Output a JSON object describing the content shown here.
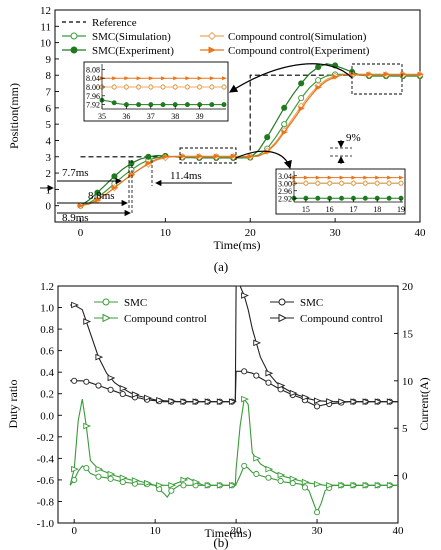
{
  "chart_data": [
    {
      "type": "line",
      "panel_label": "(a)",
      "xlabel": "Time(ms)",
      "ylabel": "Position(mm)",
      "xlim": [
        -3,
        40
      ],
      "ylim": [
        -1,
        12
      ],
      "xticks": [
        0,
        10,
        20,
        30,
        40
      ],
      "yticks": [
        0,
        1,
        2,
        3,
        4,
        5,
        6,
        7,
        8,
        9,
        10,
        11,
        12
      ],
      "legend_placement": "top-left",
      "series": [
        {
          "name": "Reference",
          "color": "#000000",
          "dash": true,
          "marker": "none",
          "x": [
            0,
            20,
            20,
            40
          ],
          "y": [
            3,
            3,
            8,
            8
          ]
        },
        {
          "name": "SMC(Simulation)",
          "color": "#3a9b3a",
          "marker": "open-circle",
          "x": [
            0,
            1,
            2,
            3,
            4,
            5,
            6,
            7,
            8,
            9,
            10,
            11,
            12,
            13,
            14,
            15,
            16,
            17,
            18,
            19,
            20,
            21,
            22,
            23,
            24,
            25,
            26,
            27,
            28,
            29,
            30,
            31,
            32,
            33,
            34,
            35,
            36,
            37,
            38,
            39,
            40
          ],
          "y": [
            0,
            0.15,
            0.5,
            0.9,
            1.35,
            1.8,
            2.2,
            2.55,
            2.8,
            2.95,
            3.0,
            3.0,
            3.0,
            3.0,
            2.98,
            3.0,
            3.0,
            3.0,
            3.0,
            3.0,
            3.0,
            3.1,
            3.5,
            4.2,
            5.0,
            5.8,
            6.6,
            7.25,
            7.7,
            7.95,
            8.05,
            8.05,
            8.02,
            8.0,
            8.0,
            8.0,
            8.0,
            8.0,
            8.0,
            8.0,
            8.0
          ]
        },
        {
          "name": "SMC(Experiment)",
          "color": "#1f7a1f",
          "marker": "filled-circle",
          "x": [
            0,
            1,
            2,
            3,
            4,
            5,
            6,
            7,
            8,
            9,
            10,
            11,
            12,
            13,
            14,
            15,
            16,
            17,
            18,
            19,
            20,
            21,
            22,
            23,
            24,
            25,
            26,
            27,
            28,
            29,
            30,
            31,
            32,
            33,
            34,
            35,
            36,
            37,
            38,
            39,
            40
          ],
          "y": [
            0,
            0.35,
            0.8,
            1.3,
            1.8,
            2.25,
            2.6,
            2.85,
            3.0,
            3.08,
            3.05,
            3.0,
            2.95,
            2.95,
            2.93,
            2.93,
            2.93,
            2.93,
            2.93,
            2.93,
            2.95,
            3.4,
            4.2,
            5.1,
            6.0,
            6.8,
            7.5,
            8.1,
            8.5,
            8.7,
            8.6,
            8.4,
            8.2,
            8.0,
            7.95,
            7.95,
            7.95,
            7.95,
            7.95,
            7.95,
            7.95
          ]
        },
        {
          "name": "Compound control(Simulation)",
          "color": "#f3a55c",
          "marker": "open-diamond",
          "x": [
            0,
            1,
            2,
            3,
            4,
            5,
            6,
            7,
            8,
            9,
            10,
            11,
            12,
            13,
            14,
            15,
            16,
            17,
            18,
            19,
            20,
            21,
            22,
            23,
            24,
            25,
            26,
            27,
            28,
            29,
            30,
            31,
            32,
            33,
            34,
            35,
            36,
            37,
            38,
            39,
            40
          ],
          "y": [
            0,
            0.1,
            0.35,
            0.7,
            1.1,
            1.5,
            1.9,
            2.25,
            2.55,
            2.8,
            2.95,
            3.0,
            3.0,
            3.0,
            3.0,
            3.0,
            3.0,
            3.0,
            3.0,
            3.0,
            3.0,
            3.05,
            3.35,
            3.9,
            4.6,
            5.35,
            6.1,
            6.8,
            7.35,
            7.75,
            7.95,
            8.03,
            8.03,
            8.02,
            8.02,
            8.02,
            8.02,
            8.02,
            8.02,
            8.02,
            8.02
          ]
        },
        {
          "name": "Compound control(Experiment)",
          "color": "#e8741c",
          "marker": "filled-triangle",
          "x": [
            0,
            1,
            2,
            3,
            4,
            5,
            6,
            7,
            8,
            9,
            10,
            11,
            12,
            13,
            14,
            15,
            16,
            17,
            18,
            19,
            20,
            21,
            22,
            23,
            24,
            25,
            26,
            27,
            28,
            29,
            30,
            31,
            32,
            33,
            34,
            35,
            36,
            37,
            38,
            39,
            40
          ],
          "y": [
            0,
            0.1,
            0.35,
            0.7,
            1.1,
            1.5,
            1.9,
            2.25,
            2.6,
            2.85,
            3.0,
            3.02,
            3.03,
            3.03,
            3.03,
            3.03,
            3.03,
            3.03,
            3.03,
            3.03,
            3.02,
            3.05,
            3.3,
            3.8,
            4.5,
            5.2,
            5.95,
            6.65,
            7.25,
            7.65,
            7.9,
            8.03,
            8.06,
            8.06,
            8.06,
            8.06,
            8.06,
            8.06,
            8.06,
            8.06,
            8.06
          ]
        }
      ],
      "annotations": [
        "7.7ms",
        "8.8ms",
        "8.9ms",
        "11.4ms",
        "9%"
      ],
      "insets": [
        {
          "xlim": [
            35,
            40
          ],
          "ylim": [
            7.9,
            8.1
          ],
          "xticks": [
            35,
            36,
            37,
            38,
            39
          ],
          "yticks": [
            7.92,
            7.96,
            8.0,
            8.04,
            8.08
          ],
          "ytick_labels": [
            "7.92",
            "7.96",
            "8.00",
            "8.04",
            "8.08"
          ],
          "series": [
            {
              "name": "SMC(Simulation)",
              "x": [
                35,
                36,
                37,
                38,
                39,
                40
              ],
              "y": [
                8.0,
                8.0,
                8.0,
                8.0,
                8.0,
                8.0
              ]
            },
            {
              "name": "SMC(Experiment)",
              "x": [
                35,
                35.3,
                35.6,
                36,
                37,
                38,
                39,
                40
              ],
              "y": [
                7.94,
                7.935,
                7.925,
                7.92,
                7.92,
                7.92,
                7.92,
                7.92
              ]
            },
            {
              "name": "Compound control(Simulation)",
              "x": [
                35,
                36,
                37,
                38,
                39,
                40
              ],
              "y": [
                8.0,
                8.0,
                8.0,
                8.0,
                8.0,
                8.0
              ]
            },
            {
              "name": "Compound control(Experiment)",
              "x": [
                35,
                36,
                37,
                38,
                39,
                40
              ],
              "y": [
                8.04,
                8.04,
                8.04,
                8.04,
                8.04,
                8.04
              ]
            }
          ]
        },
        {
          "xlim": [
            14.5,
            19
          ],
          "ylim": [
            2.9,
            3.06
          ],
          "xticks": [
            15,
            16,
            17,
            18,
            19
          ],
          "yticks": [
            2.92,
            2.96,
            3.0,
            3.04
          ],
          "ytick_labels": [
            "2.92",
            "2.96",
            "3.00",
            "3.04"
          ],
          "series": [
            {
              "name": "SMC(Simulation)",
              "x": [
                14.5,
                15,
                16,
                17,
                18,
                19
              ],
              "y": [
                3.0,
                3.0,
                3.0,
                3.0,
                3.0,
                3.0
              ]
            },
            {
              "name": "SMC(Experiment)",
              "x": [
                14.5,
                15,
                16,
                17,
                18,
                19
              ],
              "y": [
                2.92,
                2.92,
                2.92,
                2.92,
                2.92,
                2.92
              ]
            },
            {
              "name": "Compound control(Simulation)",
              "x": [
                14.5,
                15,
                16,
                17,
                18,
                19
              ],
              "y": [
                3.0,
                3.0,
                3.0,
                3.0,
                3.0,
                3.0
              ]
            },
            {
              "name": "Compound control(Experiment)",
              "x": [
                14.5,
                15,
                16,
                17,
                18,
                19
              ],
              "y": [
                3.03,
                3.03,
                3.03,
                3.03,
                3.03,
                3.03
              ]
            }
          ]
        }
      ]
    },
    {
      "type": "line",
      "panel_label": "(b)",
      "xlabel": "Time(ms)",
      "ylabel": "Duty ratio",
      "y2label": "Current(A)",
      "xlim": [
        -2,
        40
      ],
      "ylim": [
        -1.0,
        1.2
      ],
      "y2lim": [
        -5,
        20
      ],
      "xticks": [
        0,
        10,
        20,
        30,
        40
      ],
      "yticks": [
        -1.0,
        -0.8,
        -0.6,
        -0.4,
        -0.2,
        0.0,
        0.2,
        0.4,
        0.6,
        0.8,
        1.0,
        1.2
      ],
      "ytick_labels": [
        "-1.0",
        "-0.8",
        "-0.6",
        "-0.4",
        "-0.2",
        "0.0",
        "0.2",
        "0.4",
        "0.6",
        "0.8",
        "1.0",
        "1.2"
      ],
      "y2ticks": [
        0,
        5,
        10,
        15,
        20
      ],
      "legend_placement": "top",
      "series": [
        {
          "name": "SMC",
          "axis": "left",
          "color": "#3a9b3a",
          "marker": "open-circle",
          "x": [
            -0.5,
            0,
            0.5,
            1,
            1.5,
            2,
            3,
            4,
            5,
            6,
            7,
            8,
            9,
            10,
            11,
            11.5,
            12,
            13,
            14,
            15,
            16,
            17,
            18,
            19,
            19.9,
            20,
            20.5,
            21,
            21.5,
            22,
            23,
            24,
            25,
            26,
            27,
            28,
            29,
            29.5,
            30,
            30.5,
            31,
            32,
            33,
            34,
            35,
            36,
            37,
            38,
            39,
            40
          ],
          "y": [
            -0.65,
            -0.6,
            -0.52,
            -0.47,
            -0.49,
            -0.54,
            -0.57,
            -0.58,
            -0.6,
            -0.62,
            -0.63,
            -0.64,
            -0.64,
            -0.65,
            -0.72,
            -0.76,
            -0.7,
            -0.65,
            -0.65,
            -0.65,
            -0.65,
            -0.65,
            -0.65,
            -0.65,
            -0.65,
            -0.64,
            -0.56,
            -0.47,
            -0.49,
            -0.53,
            -0.56,
            -0.58,
            -0.6,
            -0.62,
            -0.63,
            -0.64,
            -0.7,
            -0.8,
            -0.9,
            -0.82,
            -0.7,
            -0.65,
            -0.65,
            -0.65,
            -0.65,
            -0.65,
            -0.65,
            -0.65,
            -0.65,
            -0.65
          ]
        },
        {
          "name": "Compound control",
          "axis": "left",
          "color": "#3a9b3a",
          "marker": "open-triangle",
          "x": [
            -0.5,
            0,
            0.5,
            1,
            1.5,
            2,
            3,
            4,
            5,
            6,
            7,
            8,
            9,
            10,
            11,
            12,
            13,
            14,
            15,
            16,
            17,
            18,
            19,
            19.9,
            20,
            20.5,
            21,
            21.5,
            22,
            23,
            24,
            25,
            26,
            27,
            28,
            29,
            30,
            31,
            32,
            33,
            34,
            35,
            36,
            37,
            38,
            39,
            40
          ],
          "y": [
            -0.65,
            -0.5,
            -0.05,
            0.15,
            -0.1,
            -0.42,
            -0.5,
            -0.53,
            -0.56,
            -0.58,
            -0.6,
            -0.61,
            -0.63,
            -0.65,
            -0.65,
            -0.65,
            -0.62,
            -0.58,
            -0.62,
            -0.65,
            -0.65,
            -0.65,
            -0.65,
            -0.65,
            -0.5,
            -0.1,
            0.15,
            0.1,
            -0.35,
            -0.45,
            -0.5,
            -0.54,
            -0.57,
            -0.59,
            -0.61,
            -0.63,
            -0.64,
            -0.65,
            -0.65,
            -0.65,
            -0.65,
            -0.65,
            -0.65,
            -0.65,
            -0.65,
            -0.65,
            -0.65
          ]
        },
        {
          "name": "SMC",
          "axis": "right",
          "color": "#222222",
          "marker": "open-circle",
          "x": [
            -0.5,
            0,
            1,
            2,
            3,
            4,
            5,
            6,
            7,
            8,
            9,
            10,
            11,
            12,
            13,
            14,
            15,
            16,
            17,
            18,
            19,
            19.9,
            20,
            20.5,
            21,
            22,
            23,
            24,
            25,
            26,
            27,
            28,
            29,
            30,
            31,
            32,
            33,
            34,
            35,
            36,
            37,
            38,
            39,
            40
          ],
          "y": [
            10,
            10,
            10,
            9.8,
            9.5,
            9.2,
            8.9,
            8.6,
            8.3,
            8.2,
            8.0,
            7.9,
            7.8,
            7.8,
            7.8,
            7.8,
            7.8,
            7.8,
            7.8,
            7.8,
            7.8,
            7.8,
            11,
            11,
            11,
            10.8,
            10.3,
            9.8,
            9.3,
            8.9,
            8.5,
            8.2,
            7.7,
            7.3,
            7.5,
            7.6,
            7.7,
            7.8,
            7.8,
            7.8,
            7.8,
            7.8,
            7.8,
            7.8
          ]
        },
        {
          "name": "Compound control",
          "axis": "right",
          "color": "#222222",
          "marker": "open-triangle",
          "x": [
            -0.5,
            0,
            1,
            2,
            3,
            4,
            5,
            6,
            7,
            8,
            9,
            10,
            11,
            12,
            13,
            14,
            15,
            16,
            17,
            18,
            19,
            19.9,
            20,
            20.5,
            21,
            21.5,
            22,
            23,
            24,
            25,
            26,
            27,
            28,
            29,
            30,
            31,
            32,
            33,
            34,
            35,
            36,
            37,
            38,
            39,
            40
          ],
          "y": [
            18,
            18,
            17.5,
            15,
            12.5,
            10.8,
            9.8,
            9.2,
            8.7,
            8.4,
            8.2,
            8.0,
            7.9,
            7.85,
            7.8,
            7.8,
            7.8,
            7.8,
            7.8,
            7.8,
            7.8,
            7.8,
            20,
            20,
            19,
            17.5,
            15.5,
            12.5,
            10.8,
            9.8,
            9.2,
            8.7,
            8.4,
            8.1,
            7.9,
            7.85,
            7.8,
            7.8,
            7.8,
            7.8,
            7.8,
            7.8,
            7.8,
            7.8,
            7.8
          ]
        }
      ]
    }
  ]
}
